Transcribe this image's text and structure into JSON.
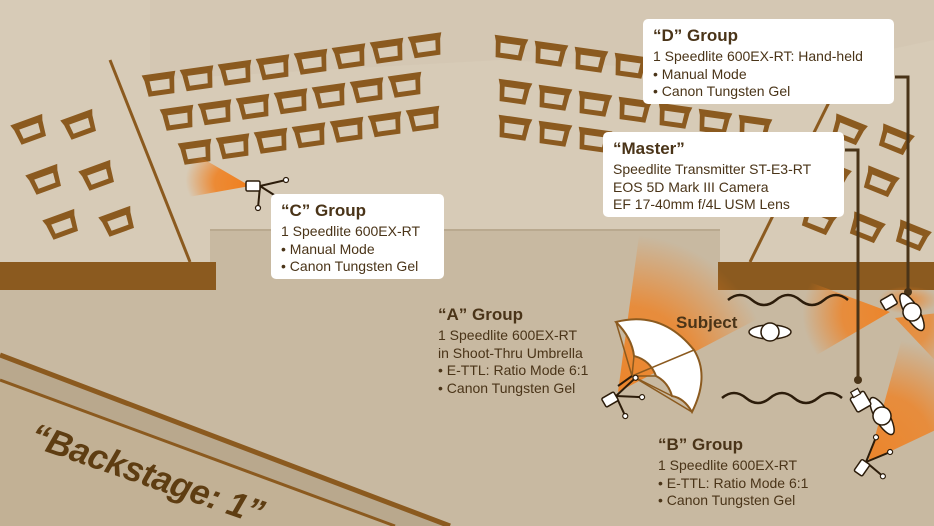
{
  "groups": {
    "d": {
      "title": "“D” Group",
      "lines": [
        "1 Speedlite 600EX-RT: Hand-held",
        "• Manual Mode",
        "• Canon Tungsten Gel"
      ]
    },
    "master": {
      "title": "“Master”",
      "lines": [
        "Speedlite Transmitter ST-E3-RT",
        "EOS 5D Mark III Camera",
        "EF 17-40mm f/4L USM Lens"
      ]
    },
    "c": {
      "title": "“C” Group",
      "lines": [
        "1 Speedlite 600EX-RT",
        "• Manual Mode",
        "• Canon Tungsten Gel"
      ]
    },
    "a": {
      "title": "“A” Group",
      "lines": [
        "1 Speedlite 600EX-RT",
        "in Shoot-Thru Umbrella",
        "• E-TTL: Ratio Mode 6:1",
        "• Canon Tungsten Gel"
      ]
    },
    "b": {
      "title": "“B” Group",
      "lines": [
        "1 Speedlite 600EX-RT",
        "• E-TTL: Ratio Mode 6:1",
        "• Canon Tungsten Gel"
      ]
    }
  },
  "subject_label": "Subject",
  "backstage_label": "“Backstage: 1”",
  "colors": {
    "wall": "#d7cbb7",
    "floor": "#c8b9a1",
    "seat": "#8b5a1f",
    "stage_edge": "#8b5a1f",
    "text": "#4a3418",
    "light_beam": "#f07f1e"
  },
  "icons": [
    "seat-icon",
    "speedlite-icon",
    "umbrella-icon",
    "camera-icon",
    "subject-icon",
    "wave-icon"
  ]
}
